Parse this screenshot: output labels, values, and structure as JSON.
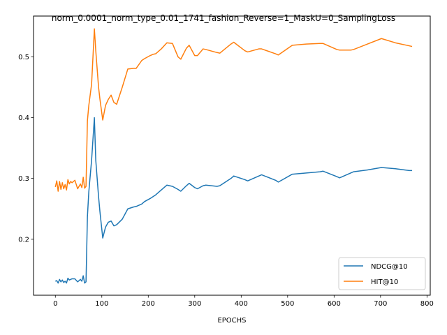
{
  "chart_data": {
    "type": "line",
    "title": "norm_0.0001_norm_type_0.01_1741_fashion_Reverse=1_MaskU=0_SamplingLoss",
    "xlabel": "EPOCHS",
    "ylabel": "",
    "xlim": [
      -47,
      807
    ],
    "ylim": [
      0.108,
      0.567
    ],
    "xticks": [
      0,
      100,
      200,
      300,
      400,
      500,
      600,
      700,
      800
    ],
    "yticks": [
      0.2,
      0.3,
      0.4,
      0.5
    ],
    "ytick_labels": [
      "0.2",
      "0.3",
      "0.4",
      "0.5"
    ],
    "grid": false,
    "legend_position": "lower-right",
    "series": [
      {
        "name": "NDCG@10",
        "color": "#1f77b4",
        "x": [
          0,
          3,
          6,
          9,
          12,
          15,
          18,
          21,
          24,
          27,
          30,
          33,
          36,
          42,
          48,
          54,
          57,
          60,
          63,
          66,
          69,
          72,
          78,
          84,
          87,
          93,
          96,
          102,
          108,
          114,
          120,
          126,
          132,
          144,
          156,
          168,
          174,
          186,
          192,
          204,
          210,
          216,
          228,
          240,
          252,
          264,
          270,
          282,
          288,
          300,
          306,
          318,
          324,
          348,
          354,
          378,
          384,
          408,
          414,
          438,
          444,
          474,
          480,
          510,
          540,
          570,
          576,
          606,
          612,
          636,
          642,
          672,
          702,
          732,
          762,
          768
        ],
        "y": [
          0.131,
          0.132,
          0.128,
          0.134,
          0.13,
          0.133,
          0.129,
          0.131,
          0.128,
          0.136,
          0.133,
          0.134,
          0.135,
          0.135,
          0.13,
          0.134,
          0.131,
          0.14,
          0.128,
          0.13,
          0.237,
          0.278,
          0.33,
          0.4,
          0.33,
          0.27,
          0.245,
          0.202,
          0.22,
          0.228,
          0.23,
          0.222,
          0.224,
          0.233,
          0.25,
          0.253,
          0.254,
          0.258,
          0.262,
          0.267,
          0.27,
          0.273,
          0.281,
          0.289,
          0.287,
          0.282,
          0.279,
          0.288,
          0.292,
          0.285,
          0.283,
          0.288,
          0.289,
          0.287,
          0.288,
          0.3,
          0.304,
          0.298,
          0.296,
          0.304,
          0.306,
          0.297,
          0.294,
          0.307,
          0.309,
          0.311,
          0.312,
          0.303,
          0.301,
          0.309,
          0.311,
          0.314,
          0.318,
          0.316,
          0.313,
          0.313
        ]
      },
      {
        "name": "HIT@10",
        "color": "#ff7f0e",
        "x": [
          0,
          3,
          6,
          9,
          12,
          15,
          18,
          21,
          24,
          27,
          30,
          33,
          36,
          42,
          48,
          54,
          57,
          60,
          63,
          66,
          69,
          72,
          78,
          84,
          87,
          93,
          96,
          102,
          108,
          114,
          120,
          126,
          132,
          144,
          156,
          168,
          174,
          186,
          192,
          204,
          210,
          216,
          228,
          240,
          252,
          264,
          270,
          282,
          288,
          300,
          306,
          318,
          324,
          348,
          354,
          378,
          384,
          408,
          414,
          438,
          444,
          474,
          480,
          510,
          540,
          570,
          576,
          606,
          612,
          636,
          642,
          672,
          702,
          732,
          762,
          768
        ],
        "y": [
          0.286,
          0.296,
          0.279,
          0.295,
          0.282,
          0.293,
          0.283,
          0.29,
          0.281,
          0.298,
          0.291,
          0.295,
          0.293,
          0.297,
          0.283,
          0.291,
          0.285,
          0.302,
          0.284,
          0.287,
          0.395,
          0.42,
          0.455,
          0.546,
          0.51,
          0.45,
          0.43,
          0.396,
          0.42,
          0.43,
          0.437,
          0.425,
          0.422,
          0.45,
          0.48,
          0.481,
          0.481,
          0.494,
          0.497,
          0.502,
          0.504,
          0.505,
          0.513,
          0.523,
          0.522,
          0.5,
          0.496,
          0.514,
          0.519,
          0.502,
          0.502,
          0.513,
          0.512,
          0.507,
          0.506,
          0.521,
          0.524,
          0.51,
          0.508,
          0.513,
          0.513,
          0.505,
          0.503,
          0.519,
          0.521,
          0.522,
          0.522,
          0.512,
          0.511,
          0.511,
          0.512,
          0.521,
          0.53,
          0.523,
          0.518,
          0.517
        ]
      }
    ]
  }
}
